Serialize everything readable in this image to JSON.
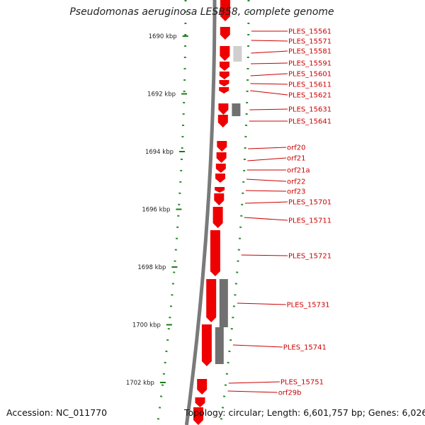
{
  "title": "Pseudomonas aeruginosa LESB58, complete genome",
  "footer": {
    "accession": "Accession: NC_011770",
    "topology": "Topology: circular; Length: 6,601,757 bp; Genes: 6,026"
  },
  "colors": {
    "gene_red": "#ee0000",
    "gene_label": "#cc0000",
    "gene_gray": "#707070",
    "gene_light_gray": "#cfcfcf",
    "backbone": "#7a7a7a",
    "gc_dots": "#2e8b2e",
    "tick_mark": "#1b7a1b"
  },
  "scale": {
    "unit": "kbp",
    "ticks": [
      {
        "position_kbp": 1690,
        "label": "1690 kbp"
      },
      {
        "position_kbp": 1692,
        "label": "1692 kbp"
      },
      {
        "position_kbp": 1694,
        "label": "1694 kbp"
      },
      {
        "position_kbp": 1696,
        "label": "1696 kbp"
      },
      {
        "position_kbp": 1698,
        "label": "1698 kbp"
      },
      {
        "position_kbp": 1700,
        "label": "1700 kbp"
      },
      {
        "position_kbp": 1702,
        "label": "1702 kbp"
      }
    ]
  },
  "gene_labels": [
    "PLES_15561",
    "PLES_15571",
    "PLES_15581",
    "PLES_15591",
    "PLES_15601",
    "PLES_15611",
    "PLES_15621",
    "PLES_15631",
    "PLES_15641",
    "orf20",
    "orf21",
    "orf21a",
    "orf22",
    "orf23",
    "PLES_15701",
    "PLES_15711",
    "PLES_15721",
    "PLES_15731",
    "PLES_15741",
    "PLES_15751",
    "orf29b"
  ]
}
